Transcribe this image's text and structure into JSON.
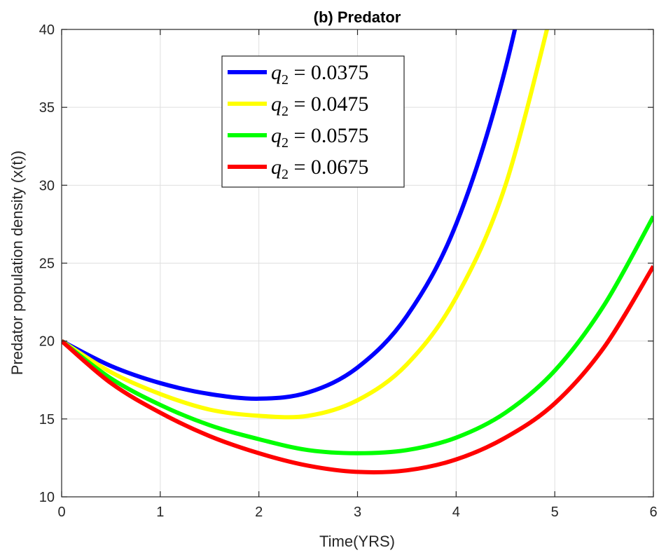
{
  "chart_data": {
    "type": "line",
    "title": "(b) Predator",
    "xlabel": "Time(YRS)",
    "ylabel": "Predator population density (x(t))",
    "xlim": [
      0,
      6
    ],
    "ylim": [
      10,
      40
    ],
    "xticks": [
      "0",
      "1",
      "2",
      "3",
      "4",
      "5",
      "6"
    ],
    "yticks": [
      "10",
      "15",
      "20",
      "25",
      "30",
      "35",
      "40"
    ],
    "grid": true,
    "legend_position": "top-center",
    "series": [
      {
        "name": "q_2 = 0.0375",
        "legend_var": "q",
        "legend_sub": "2",
        "legend_value": " = 0.0375",
        "color": "#0000ff",
        "x": [
          0,
          0.5,
          1,
          1.5,
          2,
          2.5,
          3,
          3.5,
          4,
          4.5,
          5
        ],
        "y": [
          20,
          18.4,
          17.3,
          16.6,
          16.3,
          16.7,
          18.3,
          21.6,
          27.5,
          37.5,
          52
        ]
      },
      {
        "name": "q_2 = 0.0475",
        "legend_var": "q",
        "legend_sub": "2",
        "legend_value": " = 0.0475",
        "color": "#ffff00",
        "x": [
          0,
          0.5,
          1,
          1.5,
          2,
          2.5,
          3,
          3.5,
          4,
          4.5,
          5
        ],
        "y": [
          20,
          18.0,
          16.6,
          15.6,
          15.2,
          15.2,
          16.2,
          18.5,
          22.8,
          30.0,
          42
        ]
      },
      {
        "name": "q_2 = 0.0575",
        "legend_var": "q",
        "legend_sub": "2",
        "legend_value": " = 0.0575",
        "color": "#00ff00",
        "x": [
          0,
          0.5,
          1,
          1.5,
          2,
          2.5,
          3,
          3.5,
          4,
          4.5,
          5,
          5.5,
          6
        ],
        "y": [
          20,
          17.6,
          15.9,
          14.6,
          13.7,
          13.0,
          12.8,
          13.0,
          13.8,
          15.4,
          18.1,
          22.3,
          28.0
        ]
      },
      {
        "name": "q_2 = 0.0675",
        "legend_var": "q",
        "legend_sub": "2",
        "legend_value": " = 0.0675",
        "color": "#ff0000",
        "x": [
          0,
          0.5,
          1,
          1.5,
          2,
          2.5,
          3,
          3.5,
          4,
          4.5,
          5,
          5.5,
          6
        ],
        "y": [
          20,
          17.3,
          15.4,
          13.9,
          12.8,
          12.0,
          11.6,
          11.7,
          12.4,
          13.8,
          16.0,
          19.6,
          24.8
        ]
      }
    ]
  }
}
